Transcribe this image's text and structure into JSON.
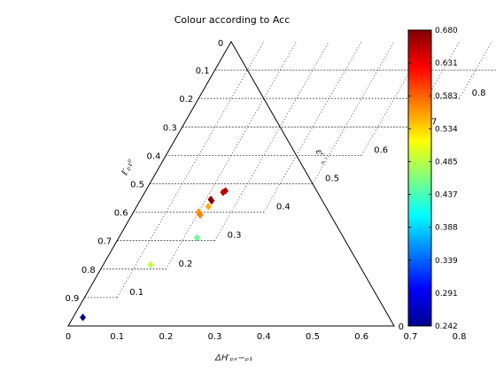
{
  "chart_data": {
    "type": "scatter",
    "subtype": "ternary",
    "title": "Colour according to Acc",
    "ticks": [
      "0",
      "0.1",
      "0.2",
      "0.3",
      "0.4",
      "0.5",
      "0.6",
      "0.7",
      "0.8",
      "0.9"
    ],
    "corner_label": "0",
    "axis_labels": {
      "bottom": "ΔH′ₚₓ−ₚ₁",
      "left": "ℓ′ₚ₁ᵖ",
      "right": "εʳ ′ₛ"
    },
    "grid": true,
    "colorbar": {
      "position": "right",
      "min": 0.242,
      "max": 0.68,
      "ticks": [
        "0.242",
        "0.291",
        "0.339",
        "0.388",
        "0.437",
        "0.485",
        "0.534",
        "0.583",
        "0.631",
        "0.680"
      ]
    },
    "points": [
      {
        "a": 0.03,
        "b": 0.97,
        "value": 0.245
      },
      {
        "a": 0.24,
        "b": 0.69,
        "value": 0.45
      },
      {
        "a": 0.145,
        "b": 0.785,
        "value": 0.49
      },
      {
        "a": 0.2,
        "b": 0.6,
        "value": 0.56
      },
      {
        "a": 0.21,
        "b": 0.61,
        "value": 0.57
      },
      {
        "a": 0.22,
        "b": 0.58,
        "value": 0.55
      },
      {
        "a": 0.24,
        "b": 0.53,
        "value": 0.65
      },
      {
        "a": 0.245,
        "b": 0.525,
        "value": 0.66
      },
      {
        "a": 0.22,
        "b": 0.56,
        "value": 0.68
      },
      {
        "a": 0.215,
        "b": 0.555,
        "value": 0.675
      }
    ]
  }
}
